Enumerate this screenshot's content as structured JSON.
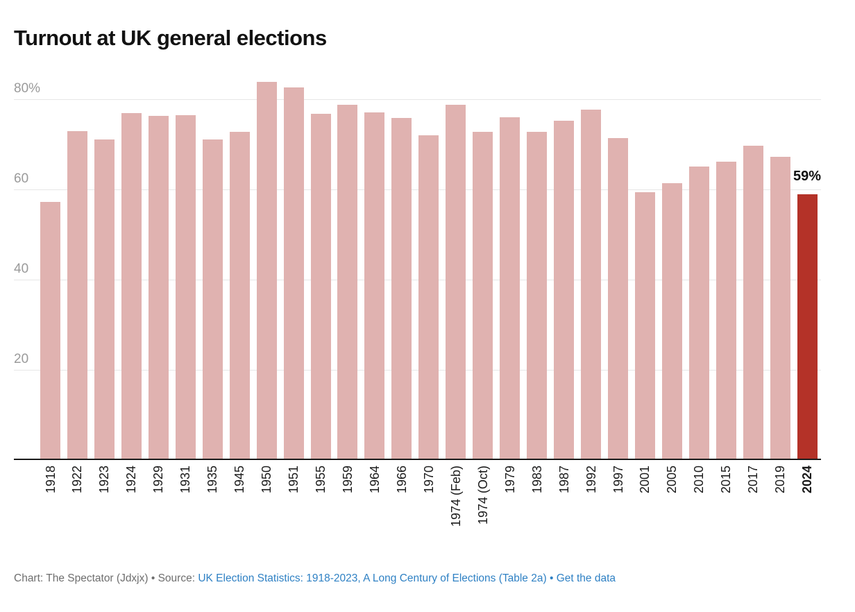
{
  "title": "Turnout at UK general elections",
  "chart_data": {
    "type": "bar",
    "title": "Turnout at UK general elections",
    "unit": "percent",
    "categories": [
      "1918",
      "1922",
      "1923",
      "1924",
      "1929",
      "1931",
      "1935",
      "1945",
      "1950",
      "1951",
      "1955",
      "1959",
      "1964",
      "1966",
      "1970",
      "1974 (Feb)",
      "1974 (Oct)",
      "1979",
      "1983",
      "1987",
      "1992",
      "1997",
      "2001",
      "2005",
      "2010",
      "2015",
      "2017",
      "2019",
      "2024"
    ],
    "values": [
      57.2,
      73.0,
      71.1,
      77.0,
      76.3,
      76.4,
      71.1,
      72.8,
      83.9,
      82.6,
      76.8,
      78.7,
      77.1,
      75.8,
      72.0,
      78.8,
      72.8,
      76.0,
      72.7,
      75.3,
      77.7,
      71.4,
      59.4,
      61.4,
      65.1,
      66.2,
      69.7,
      67.3,
      59.0
    ],
    "highlight_category": "2024",
    "highlight_index": 28,
    "annotation": {
      "category": "2024",
      "text": "59%"
    },
    "y_ticks": [
      {
        "value": 80,
        "label": "80%"
      },
      {
        "value": 60,
        "label": "60"
      },
      {
        "value": 40,
        "label": "40"
      },
      {
        "value": 20,
        "label": "20"
      }
    ],
    "ylim": [
      0,
      86.5
    ],
    "grid": true,
    "legend": "none",
    "xlabel": "",
    "ylabel": "",
    "colors": {
      "bar": "#e0b2b0",
      "highlight": "#b43228",
      "axis_line": "#1a1a1a",
      "gridline": "#e6e6e6",
      "tick_label": "#9a9a9a",
      "year_label": "#1a1a1a"
    }
  },
  "footer": {
    "credit": "Chart: The Spectator (Jdxjx)",
    "separator1": " • ",
    "source_label": "Source: ",
    "source_link": "UK Election Statistics: 1918-2023, A Long Century of Elections (Table 2a)",
    "separator2": " • ",
    "get_data_link": "Get the data",
    "text_color": "#6e6e6e",
    "link_color": "#2f81c4"
  }
}
